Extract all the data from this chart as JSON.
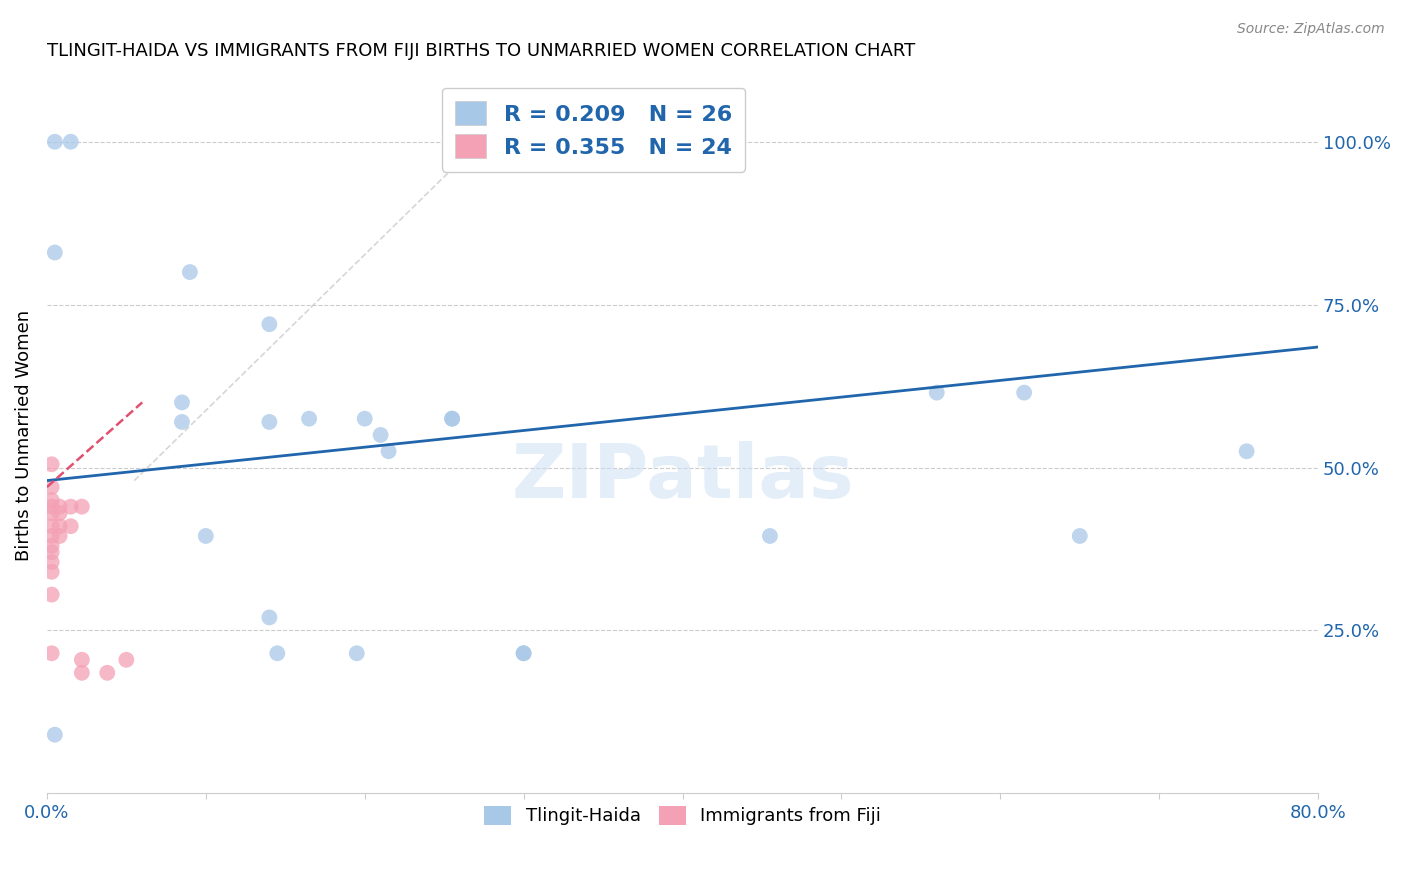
{
  "title": "TLINGIT-HAIDA VS IMMIGRANTS FROM FIJI BIRTHS TO UNMARRIED WOMEN CORRELATION CHART",
  "source": "Source: ZipAtlas.com",
  "ylabel": "Births to Unmarried Women",
  "xlim": [
    0.0,
    0.8
  ],
  "ylim": [
    0.0,
    1.1
  ],
  "yticks_right": [
    0.25,
    0.5,
    0.75,
    1.0
  ],
  "yticklabels_right": [
    "25.0%",
    "50.0%",
    "75.0%",
    "100.0%"
  ],
  "blue_color": "#a8c8e8",
  "pink_color": "#f4a0b5",
  "blue_line_color": "#2166ac",
  "pink_line_color": "#e05070",
  "gray_dashed_color": "#cccccc",
  "legend_blue_label": "R = 0.209   N = 26",
  "legend_pink_label": "R = 0.355   N = 24",
  "legend_text_color": "#2166ac",
  "watermark": "ZIPatlas",
  "tlingit_x": [
    0.005,
    0.015,
    0.005,
    0.09,
    0.14,
    0.085,
    0.085,
    0.14,
    0.165,
    0.2,
    0.21,
    0.215,
    0.255,
    0.255,
    0.455,
    0.56,
    0.615,
    0.755,
    0.1,
    0.14,
    0.145,
    0.195,
    0.3,
    0.3,
    0.65,
    0.005
  ],
  "tlingit_y": [
    1.0,
    1.0,
    0.83,
    0.8,
    0.72,
    0.6,
    0.57,
    0.57,
    0.575,
    0.575,
    0.55,
    0.525,
    0.575,
    0.575,
    0.395,
    0.615,
    0.615,
    0.525,
    0.395,
    0.27,
    0.215,
    0.215,
    0.215,
    0.215,
    0.395,
    0.09
  ],
  "fiji_x": [
    0.003,
    0.003,
    0.003,
    0.003,
    0.003,
    0.003,
    0.003,
    0.003,
    0.003,
    0.003,
    0.003,
    0.003,
    0.008,
    0.008,
    0.008,
    0.008,
    0.015,
    0.015,
    0.022,
    0.022,
    0.022,
    0.038,
    0.05,
    0.003
  ],
  "fiji_y": [
    0.505,
    0.47,
    0.45,
    0.44,
    0.43,
    0.41,
    0.395,
    0.38,
    0.37,
    0.355,
    0.34,
    0.305,
    0.44,
    0.43,
    0.41,
    0.395,
    0.44,
    0.41,
    0.44,
    0.205,
    0.185,
    0.185,
    0.205,
    0.215
  ]
}
